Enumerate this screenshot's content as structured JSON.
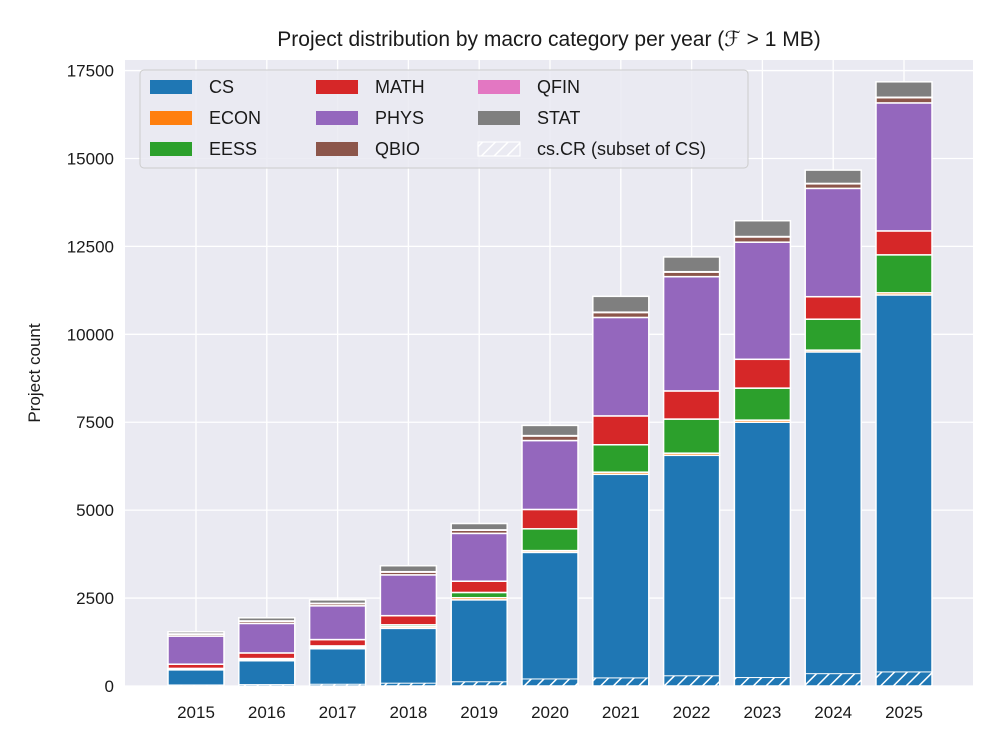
{
  "chart_data": {
    "type": "bar",
    "stacked": true,
    "title": "Project distribution by macro category per year (ℱ > 1 MB)",
    "xlabel": "",
    "ylabel": "Project count",
    "ylim": [
      0,
      17800
    ],
    "yticks": [
      0,
      2500,
      5000,
      7500,
      10000,
      12500,
      15000,
      17500
    ],
    "grid": true,
    "legend_position": "top-left",
    "categories": [
      "2015",
      "2016",
      "2017",
      "2018",
      "2019",
      "2020",
      "2021",
      "2022",
      "2023",
      "2024",
      "2025"
    ],
    "series": [
      {
        "name": "CS",
        "color": "#1f77b4",
        "values": [
          460,
          720,
          1060,
          1640,
          2450,
          3800,
          6020,
          6560,
          7500,
          9500,
          11120
        ]
      },
      {
        "name": "ECON",
        "color": "#ff7f0e",
        "values": [
          20,
          30,
          40,
          50,
          60,
          50,
          60,
          60,
          60,
          50,
          60
        ]
      },
      {
        "name": "EESS",
        "color": "#2ca02c",
        "values": [
          20,
          30,
          40,
          50,
          150,
          620,
          780,
          970,
          910,
          880,
          1080
        ]
      },
      {
        "name": "MATH",
        "color": "#d62728",
        "values": [
          120,
          160,
          180,
          260,
          320,
          550,
          820,
          800,
          820,
          640,
          680
        ]
      },
      {
        "name": "PHYS",
        "color": "#9467bd",
        "values": [
          800,
          840,
          960,
          1160,
          1360,
          1960,
          2800,
          3250,
          3330,
          3080,
          3640
        ]
      },
      {
        "name": "QBIO",
        "color": "#8c564b",
        "values": [
          50,
          60,
          60,
          80,
          90,
          130,
          140,
          130,
          150,
          130,
          150
        ]
      },
      {
        "name": "QFIN",
        "color": "#e377c2",
        "values": [
          10,
          10,
          10,
          10,
          10,
          10,
          10,
          10,
          10,
          10,
          10
        ]
      },
      {
        "name": "STAT",
        "color": "#7f7f7f",
        "values": [
          60,
          90,
          100,
          170,
          180,
          290,
          450,
          420,
          450,
          380,
          440
        ]
      }
    ],
    "overlay": {
      "name": "cs.CR (subset of CS)",
      "values": [
        30,
        40,
        50,
        80,
        120,
        200,
        230,
        290,
        240,
        350,
        400
      ]
    }
  }
}
